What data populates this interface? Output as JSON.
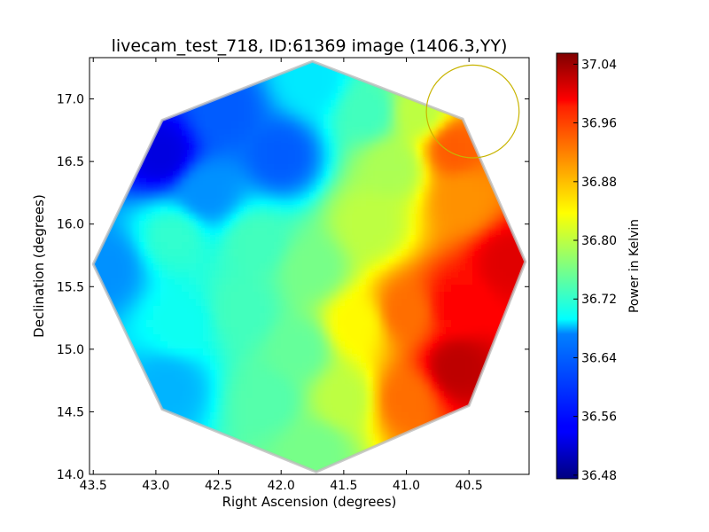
{
  "chart_data": {
    "type": "heatmap",
    "title": "livecam_test_718, ID:61369 image (1406.3,YY)",
    "xlabel": "Right Ascension (degrees)",
    "ylabel": "Declination (degrees)",
    "colorbar_label": "Power in Kelvin",
    "xlim": [
      43.53,
      40.02
    ],
    "ylim": [
      14.0,
      17.33
    ],
    "x_ticks": [
      43.5,
      43.0,
      42.5,
      42.0,
      41.5,
      41.0,
      40.5
    ],
    "x_tick_labels": [
      "43.5",
      "43.0",
      "42.5",
      "42.0",
      "41.5",
      "41.0",
      "40.5"
    ],
    "y_ticks": [
      14.0,
      14.5,
      15.0,
      15.5,
      16.0,
      16.5,
      17.0
    ],
    "y_tick_labels": [
      "14.0",
      "14.5",
      "15.0",
      "15.5",
      "16.0",
      "16.5",
      "17.0"
    ],
    "colorbar_range": [
      36.475,
      37.055
    ],
    "colorbar_ticks": [
      36.48,
      36.56,
      36.64,
      36.72,
      36.8,
      36.88,
      36.96,
      37.04
    ],
    "colorbar_tick_labels": [
      "36.48",
      "36.56",
      "36.64",
      "36.72",
      "36.80",
      "36.88",
      "36.96",
      "37.04"
    ],
    "colormap": "jet",
    "field_footprint": "octagon",
    "field_vertices": [
      [
        41.75,
        17.3
      ],
      [
        40.55,
        16.84
      ],
      [
        40.05,
        15.7
      ],
      [
        40.5,
        14.55
      ],
      [
        41.72,
        14.02
      ],
      [
        42.95,
        14.52
      ],
      [
        43.5,
        15.68
      ],
      [
        42.95,
        16.83
      ]
    ],
    "value_samples": [
      {
        "ra": 42.95,
        "dec": 16.55,
        "value": 36.53
      },
      {
        "ra": 42.45,
        "dec": 16.9,
        "value": 36.6
      },
      {
        "ra": 42.0,
        "dec": 16.55,
        "value": 36.6
      },
      {
        "ra": 41.75,
        "dec": 17.15,
        "value": 36.68
      },
      {
        "ra": 41.3,
        "dec": 16.9,
        "value": 36.73
      },
      {
        "ra": 40.9,
        "dec": 16.9,
        "value": 36.8
      },
      {
        "ra": 40.62,
        "dec": 16.6,
        "value": 36.93
      },
      {
        "ra": 40.55,
        "dec": 16.2,
        "value": 36.9
      },
      {
        "ra": 40.18,
        "dec": 15.7,
        "value": 37.0
      },
      {
        "ra": 40.6,
        "dec": 15.35,
        "value": 36.98
      },
      {
        "ra": 40.6,
        "dec": 14.85,
        "value": 37.02
      },
      {
        "ra": 41.0,
        "dec": 14.6,
        "value": 36.92
      },
      {
        "ra": 41.0,
        "dec": 15.3,
        "value": 36.92
      },
      {
        "ra": 41.4,
        "dec": 15.2,
        "value": 36.84
      },
      {
        "ra": 41.5,
        "dec": 14.6,
        "value": 36.8
      },
      {
        "ra": 41.72,
        "dec": 14.2,
        "value": 36.76
      },
      {
        "ra": 42.1,
        "dec": 14.6,
        "value": 36.74
      },
      {
        "ra": 42.9,
        "dec": 14.7,
        "value": 36.65
      },
      {
        "ra": 42.8,
        "dec": 15.2,
        "value": 36.7
      },
      {
        "ra": 43.4,
        "dec": 15.65,
        "value": 36.63
      },
      {
        "ra": 42.85,
        "dec": 15.9,
        "value": 36.72
      },
      {
        "ra": 42.2,
        "dec": 15.85,
        "value": 36.73
      },
      {
        "ra": 41.75,
        "dec": 15.65,
        "value": 36.76
      },
      {
        "ra": 41.3,
        "dec": 16.0,
        "value": 36.8
      },
      {
        "ra": 41.1,
        "dec": 16.45,
        "value": 36.79
      },
      {
        "ra": 42.6,
        "dec": 16.25,
        "value": 36.63
      },
      {
        "ra": 42.3,
        "dec": 15.3,
        "value": 36.73
      },
      {
        "ra": 41.85,
        "dec": 15.0,
        "value": 36.75
      }
    ],
    "marker_circle": {
      "ra": 40.47,
      "dec": 16.9,
      "radius_deg": 0.37,
      "color": "#c8b400"
    },
    "grid": false,
    "legend": "none"
  }
}
